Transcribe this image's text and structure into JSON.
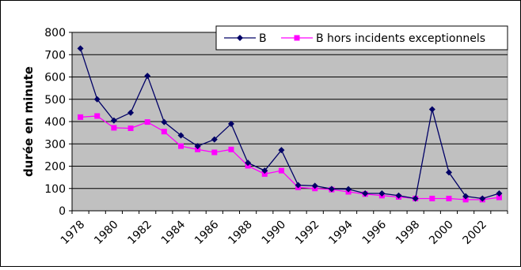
{
  "chart_data": {
    "type": "line",
    "title": "",
    "xlabel": "",
    "ylabel": "durée en minute",
    "ylim": [
      0,
      800
    ],
    "yticks": [
      0,
      100,
      200,
      300,
      400,
      500,
      600,
      700,
      800
    ],
    "xlim": [
      1978,
      2003
    ],
    "xticks": [
      1978,
      1980,
      1982,
      1984,
      1986,
      1988,
      1990,
      1992,
      1994,
      1996,
      1998,
      2000,
      2002
    ],
    "grid": true,
    "legend_position": "top-right",
    "x": [
      1978,
      1979,
      1980,
      1981,
      1982,
      1983,
      1984,
      1985,
      1986,
      1987,
      1988,
      1989,
      1990,
      1991,
      1992,
      1993,
      1994,
      1995,
      1996,
      1997,
      1998,
      1999,
      2000,
      2001,
      2002,
      2003
    ],
    "series": [
      {
        "name": "B",
        "color": "#000066",
        "marker": "diamond",
        "values": [
          728,
          500,
          405,
          440,
          605,
          398,
          338,
          290,
          320,
          390,
          215,
          180,
          272,
          115,
          112,
          98,
          97,
          78,
          78,
          68,
          55,
          455,
          172,
          65,
          55,
          78
        ]
      },
      {
        "name": "B hors incidents exceptionnels",
        "color": "#FF00FF",
        "marker": "square",
        "values": [
          420,
          425,
          372,
          370,
          398,
          355,
          290,
          275,
          262,
          275,
          202,
          165,
          180,
          105,
          100,
          95,
          85,
          75,
          68,
          62,
          55,
          55,
          55,
          50,
          50,
          60
        ]
      }
    ]
  }
}
